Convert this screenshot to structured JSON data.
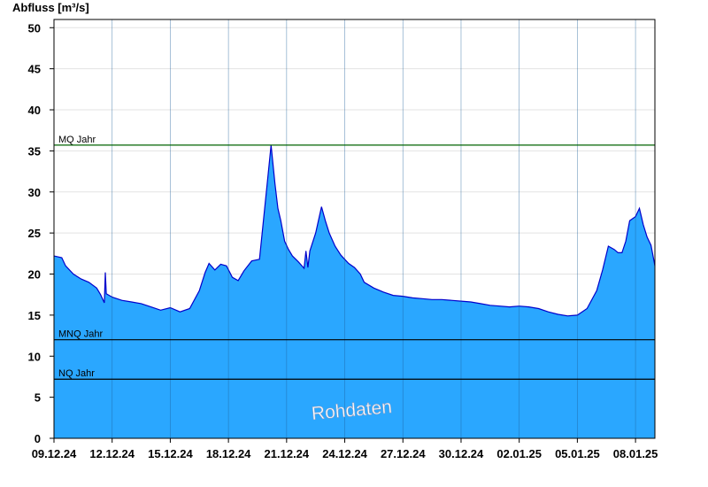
{
  "chart_data": {
    "type": "area",
    "ylabel": "Abfluss [m³/s]",
    "ylim": [
      0,
      51
    ],
    "yticks": [
      0,
      5,
      10,
      15,
      20,
      25,
      30,
      35,
      40,
      45,
      50
    ],
    "x_tick_labels": [
      "09.12.24",
      "12.12.24",
      "15.12.24",
      "18.12.24",
      "21.12.24",
      "24.12.24",
      "27.12.24",
      "30.12.24",
      "02.01.25",
      "05.01.25",
      "08.01.25"
    ],
    "x_range_days": [
      0,
      31
    ],
    "grid": "horizontal-light",
    "watermark": "Rohdaten",
    "fill_color": "#2aa7ff",
    "line_color": "#0000cc",
    "reference_lines": [
      {
        "label": "MQ Jahr",
        "value": 35.7,
        "color": "#006400"
      },
      {
        "label": "MNQ Jahr",
        "value": 12.0,
        "color": "#000000"
      },
      {
        "label": "NQ Jahr",
        "value": 7.2,
        "color": "#000000"
      }
    ],
    "series": [
      {
        "x": [
          0,
          0.4,
          0.6,
          1.0,
          1.4,
          1.8,
          2.2,
          2.4,
          2.6,
          2.65,
          2.7,
          3.0,
          3.5,
          4.0,
          4.5,
          5.0,
          5.5,
          6.0,
          6.5,
          7.0,
          7.5,
          7.8,
          8.0,
          8.3,
          8.6,
          8.9,
          9.2,
          9.5,
          9.8,
          10.2,
          10.6,
          11.0,
          11.2,
          11.4,
          11.55,
          11.7,
          11.9,
          12.1,
          12.3,
          12.6,
          12.9,
          13.0,
          13.1,
          13.2,
          13.5,
          13.8,
          14.0,
          14.2,
          14.5,
          14.8,
          15.0,
          15.2,
          15.5,
          15.8,
          16.0,
          16.5,
          17.0,
          17.5,
          18.0,
          18.5,
          19.0,
          19.5,
          20.0,
          20.5,
          21.0,
          21.5,
          22.0,
          22.5,
          23.0,
          23.5,
          24.0,
          24.5,
          25.0,
          25.5,
          26.0,
          26.5,
          27.0,
          27.5,
          28.0,
          28.3,
          28.6,
          28.9,
          29.1,
          29.3,
          29.5,
          29.7,
          30.0,
          30.2,
          30.4,
          30.6,
          30.8,
          31.0
        ],
        "y": [
          22.2,
          22.0,
          21.0,
          20.0,
          19.4,
          19.0,
          18.3,
          17.5,
          16.5,
          20.2,
          17.6,
          17.2,
          16.8,
          16.6,
          16.4,
          16.0,
          15.6,
          15.9,
          15.4,
          15.8,
          18.0,
          20.2,
          21.3,
          20.5,
          21.2,
          21.0,
          19.6,
          19.2,
          20.4,
          21.6,
          21.8,
          31.0,
          35.7,
          31.0,
          28.0,
          26.5,
          24.0,
          23.0,
          22.2,
          21.5,
          20.7,
          22.8,
          20.8,
          22.8,
          25.0,
          28.2,
          26.5,
          25.0,
          23.4,
          22.3,
          21.8,
          21.3,
          20.8,
          20.0,
          19.0,
          18.3,
          17.8,
          17.4,
          17.3,
          17.1,
          17.0,
          16.9,
          16.9,
          16.8,
          16.7,
          16.6,
          16.4,
          16.2,
          16.1,
          16.0,
          16.1,
          16.0,
          15.8,
          15.4,
          15.1,
          14.9,
          15.0,
          15.8,
          18.0,
          20.5,
          23.4,
          23.0,
          22.6,
          22.6,
          24.0,
          26.5,
          27.0,
          28.0,
          26.0,
          24.5,
          23.5,
          21.0
        ]
      }
    ]
  }
}
